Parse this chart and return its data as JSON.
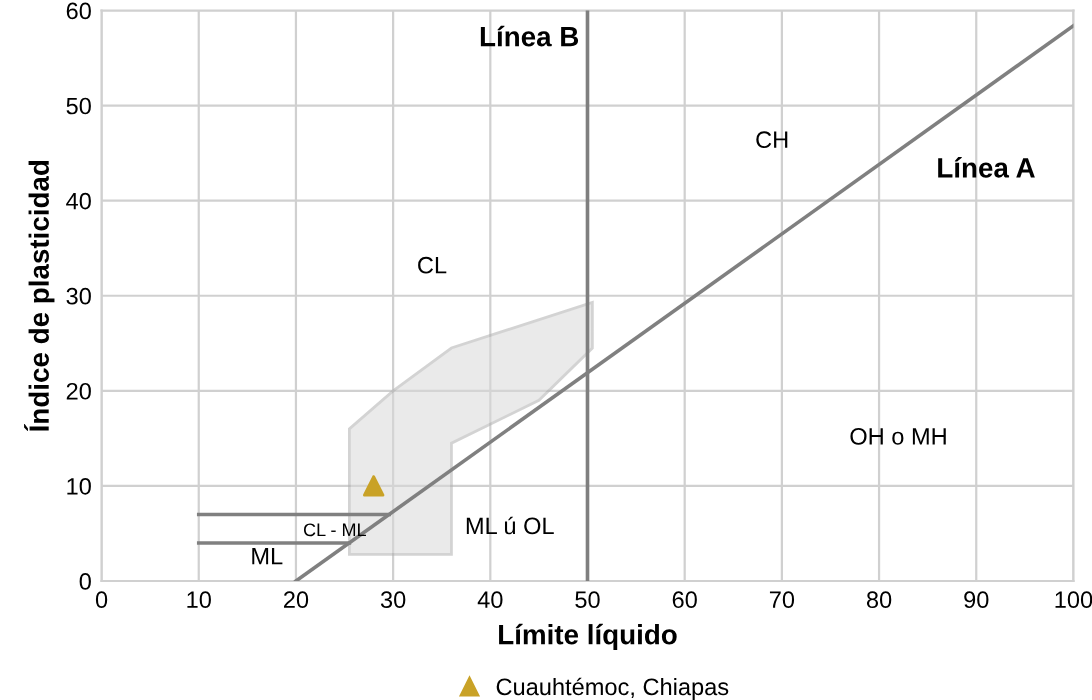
{
  "chart_data": {
    "type": "scatter",
    "xlabel": "Límite líquido",
    "ylabel": "Índice de plasticidad",
    "xlim": [
      0,
      100
    ],
    "xticks": [
      0,
      10,
      20,
      30,
      40,
      50,
      60,
      70,
      80,
      90,
      100
    ],
    "ylim": [
      0,
      60
    ],
    "yticks": [
      0,
      10,
      20,
      30,
      40,
      50,
      60
    ],
    "grid": true,
    "legend": "bottom",
    "ref_lines": [
      {
        "axis": "x",
        "value": 50,
        "color": "#7f7f7f"
      }
    ],
    "series": [
      {
        "type": "area",
        "color": "#d9d9d9",
        "x": [
          25.5,
          30,
          36,
          50.5,
          50.5,
          45,
          36,
          36,
          25.5
        ],
        "values": [
          16,
          20,
          24.5,
          29.3,
          24.5,
          19,
          14.5,
          2.8,
          2.8
        ]
      },
      {
        "type": "line",
        "color": "#808080",
        "x": [
          20,
          100
        ],
        "values": [
          0,
          58.4
        ]
      },
      {
        "type": "line",
        "color": "#808080",
        "x": [
          10,
          29.6
        ],
        "values": [
          7,
          7
        ]
      },
      {
        "type": "line",
        "color": "#808080",
        "x": [
          10,
          25.5
        ],
        "values": [
          4,
          4
        ]
      },
      {
        "name": "Cuauhtémoc, Chiapas",
        "color": "#c9a227",
        "marker": "triangle",
        "x": [
          28
        ],
        "values": [
          10
        ]
      }
    ],
    "annotations": [
      "Línea B",
      "Línea A",
      "CH",
      "CL",
      "OH o MH",
      "ML ú OL",
      "CL - ML",
      "ML"
    ]
  }
}
